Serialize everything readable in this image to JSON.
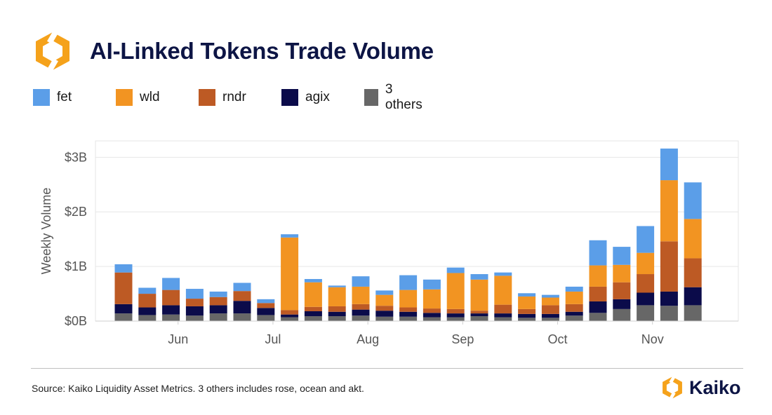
{
  "header": {
    "title": "AI-Linked Tokens Trade Volume"
  },
  "colors": {
    "fet": "#5b9ee8",
    "wld": "#f29422",
    "rndr": "#bd5a24",
    "agix": "#0b0b4a",
    "others": "#676767",
    "logo_orange": "#f5a21b",
    "brand_navy": "#0d1545"
  },
  "chart_data": {
    "type": "bar",
    "stacked": true,
    "ylabel": "Weekly Volume",
    "xlabel": "",
    "ylim": [
      0,
      3.3
    ],
    "yticks": [
      {
        "value": 0,
        "label": "$0B"
      },
      {
        "value": 1,
        "label": "$1B"
      },
      {
        "value": 2,
        "label": "$2B"
      },
      {
        "value": 3,
        "label": "$3B"
      }
    ],
    "x_tick_labels": [
      "Jun",
      "Jul",
      "Aug",
      "Sep",
      "Oct",
      "Nov"
    ],
    "grid": true,
    "legend_position": "top-left",
    "series": [
      {
        "name": "3 others",
        "color": "#676767",
        "values": [
          0.14,
          0.11,
          0.12,
          0.1,
          0.14,
          0.14,
          0.11,
          0.07,
          0.09,
          0.09,
          0.1,
          0.08,
          0.08,
          0.07,
          0.07,
          0.09,
          0.07,
          0.06,
          0.06,
          0.1,
          0.15,
          0.22,
          0.29,
          0.28,
          0.29
        ]
      },
      {
        "name": "agix",
        "color": "#0b0b4a",
        "values": [
          0.17,
          0.14,
          0.17,
          0.17,
          0.15,
          0.23,
          0.13,
          0.05,
          0.09,
          0.08,
          0.11,
          0.11,
          0.09,
          0.08,
          0.07,
          0.05,
          0.07,
          0.07,
          0.07,
          0.07,
          0.21,
          0.18,
          0.23,
          0.26,
          0.33
        ]
      },
      {
        "name": "rndr",
        "color": "#bd5a24",
        "values": [
          0.58,
          0.25,
          0.28,
          0.14,
          0.15,
          0.18,
          0.09,
          0.08,
          0.08,
          0.1,
          0.1,
          0.09,
          0.08,
          0.08,
          0.08,
          0.05,
          0.16,
          0.09,
          0.16,
          0.14,
          0.27,
          0.31,
          0.34,
          0.92,
          0.53
        ]
      },
      {
        "name": "wld",
        "color": "#f29422",
        "values": [
          0.0,
          0.0,
          0.0,
          0.0,
          0.0,
          0.0,
          0.0,
          1.33,
          0.45,
          0.35,
          0.32,
          0.2,
          0.32,
          0.35,
          0.66,
          0.57,
          0.53,
          0.23,
          0.14,
          0.23,
          0.39,
          0.32,
          0.39,
          1.12,
          0.72
        ]
      },
      {
        "name": "fet",
        "color": "#5b9ee8",
        "values": [
          0.15,
          0.11,
          0.22,
          0.18,
          0.1,
          0.15,
          0.07,
          0.06,
          0.06,
          0.03,
          0.19,
          0.08,
          0.27,
          0.18,
          0.1,
          0.1,
          0.06,
          0.06,
          0.05,
          0.09,
          0.46,
          0.33,
          0.49,
          0.58,
          0.67
        ]
      }
    ]
  },
  "footer": {
    "source": "Source: Kaiko Liquidity Asset Metrics. 3 others includes rose, ocean and akt.",
    "brand": "Kaiko"
  }
}
